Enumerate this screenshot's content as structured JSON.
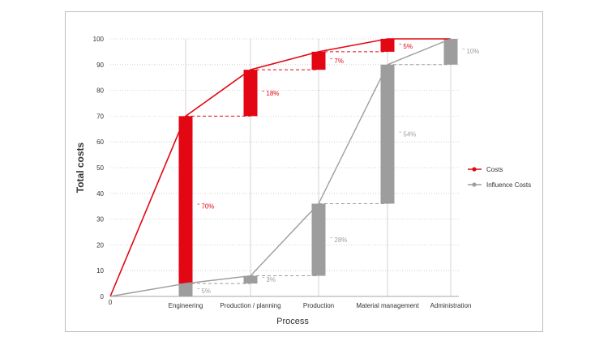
{
  "chart_data": {
    "type": "waterfall-line",
    "ylabel": "Total costs",
    "xlabel": "Process",
    "ylim": [
      0,
      100
    ],
    "yticks": [
      0,
      10,
      20,
      30,
      40,
      50,
      60,
      70,
      80,
      90,
      100
    ],
    "origin_label": "0",
    "categories": [
      "Engineering",
      "Production / planning",
      "Production",
      "Material management",
      "Administration"
    ],
    "series": [
      {
        "name": "Costs",
        "color": "#e30613",
        "increments": [
          70,
          18,
          7,
          5,
          0
        ],
        "labels": [
          "70%",
          "18%",
          "7%",
          "5%",
          ""
        ],
        "cumulative": [
          0,
          70,
          88,
          95,
          100,
          100
        ]
      },
      {
        "name": "Influence Costs",
        "color": "#9d9d9d",
        "increments": [
          5,
          3,
          28,
          54,
          10
        ],
        "labels": [
          "5%",
          "3%",
          "28%",
          "54%",
          "10%"
        ],
        "cumulative": [
          0,
          5,
          8,
          36,
          90,
          100
        ]
      }
    ],
    "legend_position": "right",
    "grid": "horizontal-dotted"
  }
}
